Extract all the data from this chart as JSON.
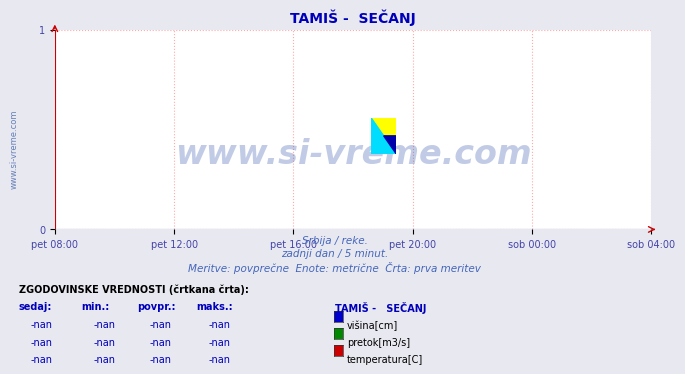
{
  "title": "TAMIŠ -  SEČANJ",
  "title_color": "#0000bb",
  "title_fontsize": 10,
  "background_color": "#e8e8f0",
  "plot_bg_color": "#ffffff",
  "grid_color": "#ffaaaa",
  "grid_linestyle": ":",
  "xlim_labels": [
    "pet 08:00",
    "pet 12:00",
    "pet 16:00",
    "pet 20:00",
    "sob 00:00",
    "sob 04:00"
  ],
  "ylim": [
    0,
    1
  ],
  "yticks": [
    0,
    1
  ],
  "tick_color": "#4444aa",
  "axis_color": "#cc0000",
  "subtitle_lines": [
    "Srbija / reke.",
    "zadnji dan / 5 minut.",
    "Meritve: povprečne  Enote: metrične  Črta: prva meritev"
  ],
  "subtitle_color": "#4466bb",
  "subtitle_fontsize": 7.5,
  "watermark_text": "www.si-vreme.com",
  "watermark_color": "#3355aa",
  "watermark_alpha": 0.3,
  "watermark_fontsize": 24,
  "side_text": "www.si-vreme.com",
  "side_text_color": "#4466aa",
  "side_text_fontsize": 6,
  "table_header": "ZGODOVINSKE VREDNOSTI (črtkana črta):",
  "table_col_headers": [
    "sedaj:",
    "min.:",
    "povpr.:",
    "maks.:"
  ],
  "table_station": "TAMIŠ -   SEČANJ",
  "table_rows": [
    {
      "values": [
        "-nan",
        "-nan",
        "-nan",
        "-nan"
      ],
      "label": "višina[cm]",
      "color": "#0000cc"
    },
    {
      "values": [
        "-nan",
        "-nan",
        "-nan",
        "-nan"
      ],
      "label": "pretok[m3/s]",
      "color": "#008800"
    },
    {
      "values": [
        "-nan",
        "-nan",
        "-nan",
        "-nan"
      ],
      "label": "temperatura[C]",
      "color": "#cc0000"
    }
  ]
}
